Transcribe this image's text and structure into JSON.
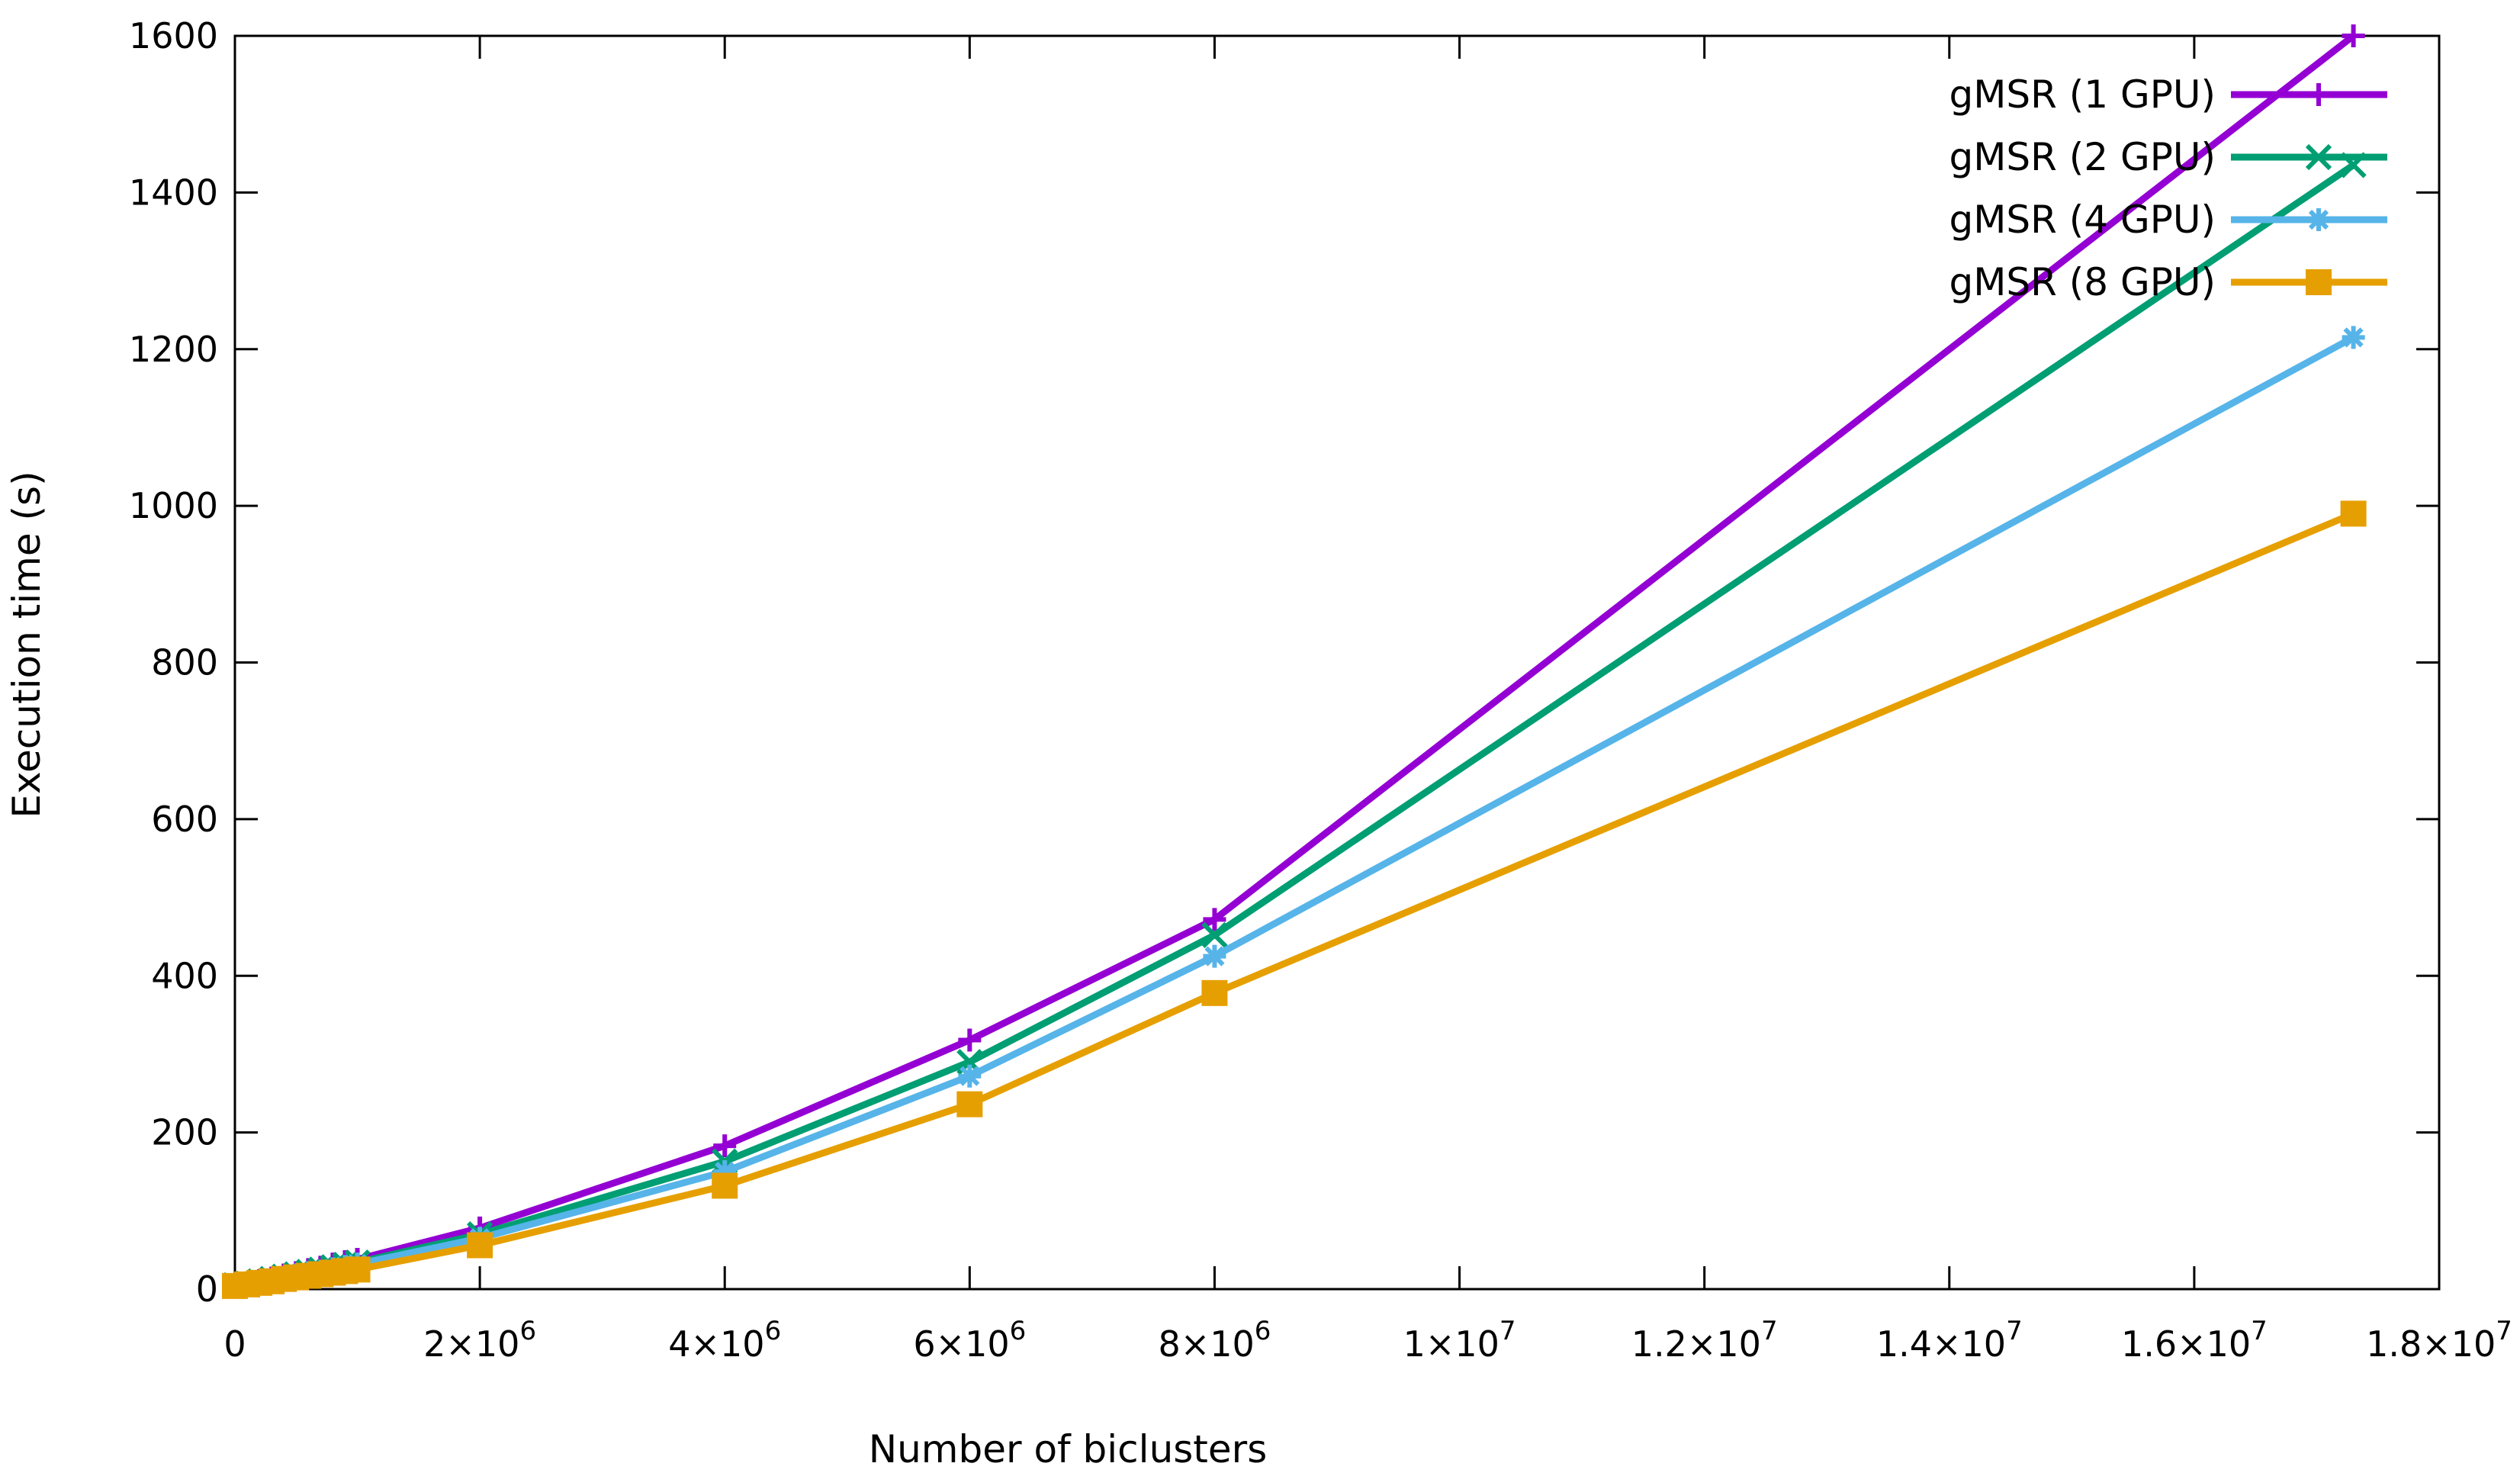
{
  "chart_data": {
    "type": "line",
    "title": "",
    "xlabel": "Number of biclusters",
    "ylabel": "Execution time (s)",
    "xlim": [
      0,
      18000000
    ],
    "ylim": [
      0,
      1600
    ],
    "x_ticks": [
      {
        "value": 0,
        "base": "0",
        "exp": ""
      },
      {
        "value": 2000000,
        "base": "2×10",
        "exp": "6"
      },
      {
        "value": 4000000,
        "base": "4×10",
        "exp": "6"
      },
      {
        "value": 6000000,
        "base": "6×10",
        "exp": "6"
      },
      {
        "value": 8000000,
        "base": "8×10",
        "exp": "6"
      },
      {
        "value": 10000000,
        "base": "1×10",
        "exp": "7"
      },
      {
        "value": 12000000,
        "base": "1.2×10",
        "exp": "7"
      },
      {
        "value": 14000000,
        "base": "1.4×10",
        "exp": "7"
      },
      {
        "value": 16000000,
        "base": "1.6×10",
        "exp": "7"
      },
      {
        "value": 18000000,
        "base": "1.8×10",
        "exp": "7"
      }
    ],
    "y_ticks": [
      0,
      200,
      400,
      600,
      800,
      1000,
      1200,
      1400,
      1600
    ],
    "grid": false,
    "legend_position": "top-right",
    "x": [
      0,
      100000,
      200000,
      300000,
      400000,
      500000,
      600000,
      700000,
      800000,
      900000,
      1000000,
      2000000,
      4000000,
      6000000,
      8000000,
      17300000
    ],
    "series": [
      {
        "name": "gMSR (1 GPU)",
        "color": "#9400d3",
        "marker": "plus",
        "values": [
          5,
          8,
          11,
          14,
          18,
          21,
          25,
          28,
          32,
          35,
          38,
          78,
          183,
          318,
          472,
          1600
        ]
      },
      {
        "name": "gMSR (2 GPU)",
        "color": "#009e73",
        "marker": "cross",
        "values": [
          5,
          7,
          10,
          13,
          16,
          19,
          22,
          25,
          28,
          31,
          34,
          70,
          163,
          290,
          452,
          1435
        ]
      },
      {
        "name": "gMSR (4 GPU)",
        "color": "#56b4e9",
        "marker": "star",
        "values": [
          4,
          7,
          9,
          12,
          15,
          18,
          21,
          23,
          26,
          29,
          32,
          65,
          150,
          272,
          425,
          1215
        ]
      },
      {
        "name": "gMSR (8 GPU)",
        "color": "#e69f00",
        "marker": "square",
        "values": [
          4,
          6,
          8,
          10,
          13,
          15,
          17,
          19,
          21,
          23,
          25,
          56,
          132,
          236,
          378,
          990
        ]
      }
    ]
  }
}
